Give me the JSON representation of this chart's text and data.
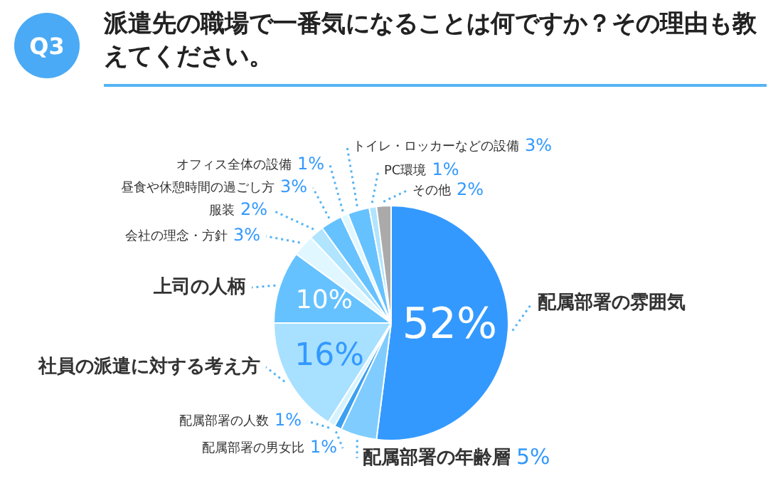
{
  "chart_data": {
    "type": "pie",
    "title": "派遣先の職場で一番気になることは何ですか？その理由も教えてください。",
    "annotations": [
      "Q3"
    ],
    "categories": [
      "配属部署の雰囲気",
      "配属部署の年齢層",
      "配属部署の男女比",
      "配属部署の人数",
      "社員の派遣に対する考え方",
      "上司の人柄",
      "会社の理念・方針",
      "服装",
      "昼食や休憩時間の過ごし方",
      "オフィス全体の設備",
      "トイレ・ロッカーなどの設備",
      "PC環境",
      "その他"
    ],
    "values": [
      52,
      5,
      1,
      1,
      16,
      10,
      3,
      2,
      3,
      1,
      3,
      1,
      2
    ],
    "colors": [
      "#3399ff",
      "#80ccff",
      "#3da0f0",
      "#d5f3ff",
      "#a8e0ff",
      "#66c2ff",
      "#e0f7ff",
      "#b0e4ff",
      "#66c2ff",
      "#e0f7ff",
      "#66c2ff",
      "#b0e4ff",
      "#aaaaaa"
    ],
    "value_labels": [
      "52%",
      "5%",
      "1%",
      "1%",
      "16%",
      "10%",
      "3%",
      "2%",
      "3%",
      "1%",
      "3%",
      "1%",
      "2%"
    ],
    "legend": false
  }
}
